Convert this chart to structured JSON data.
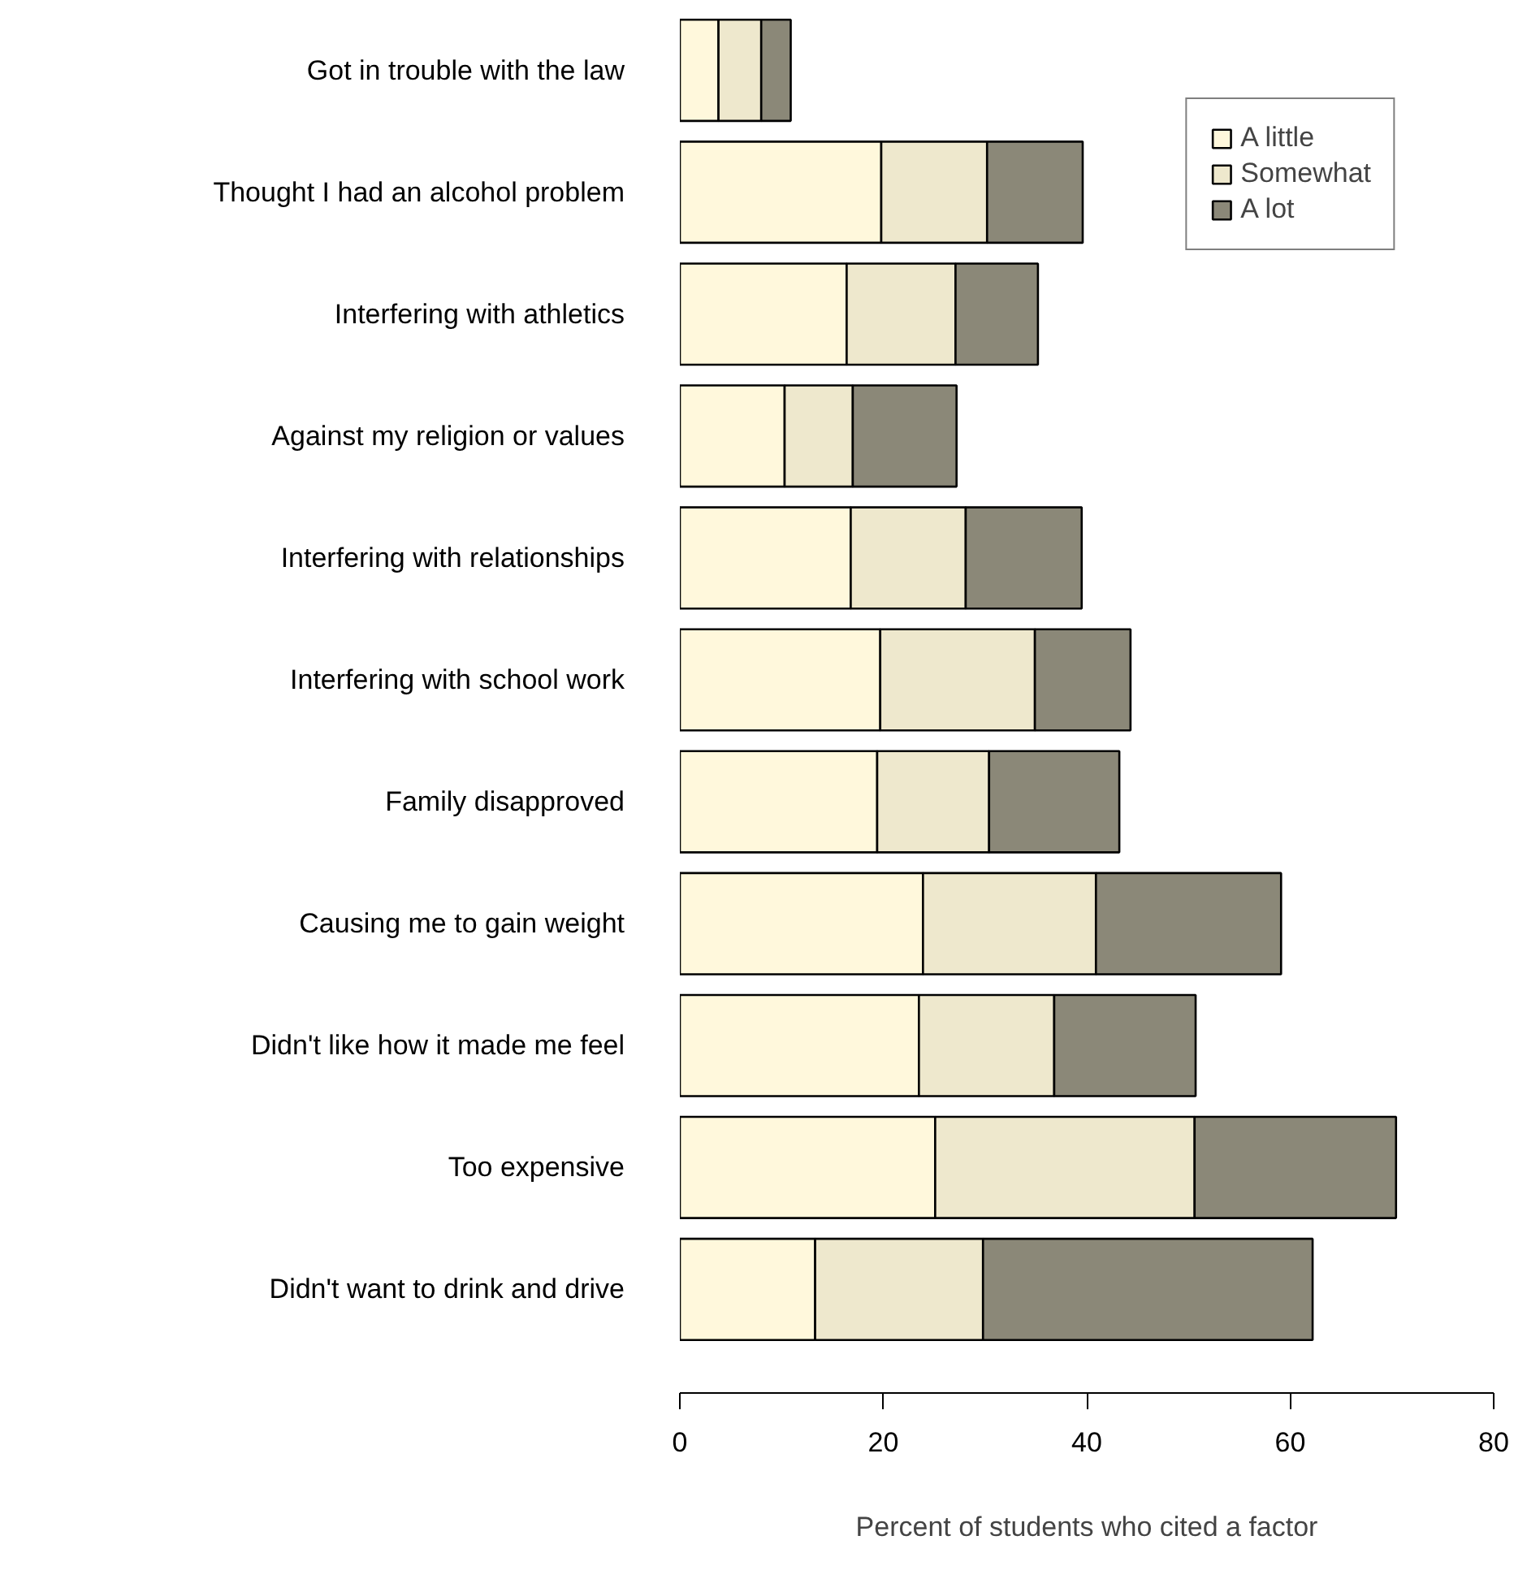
{
  "chart_data": {
    "type": "bar",
    "orientation": "horizontal",
    "stacked": true,
    "xlabel": "Percent of students who cited a factor",
    "categories": [
      "Got in trouble with the law",
      "Thought I had an alcohol problem",
      "Interfering with athletics",
      "Against my religion or values",
      "Interfering with relationships",
      "Interfering with school work",
      "Family disapproved",
      "Causing me to gain weight",
      "Didn't like how it made me feel",
      "Too expensive",
      "Didn't want to drink and drive"
    ],
    "series": [
      {
        "name": "A little",
        "color": "#fff8dc",
        "values": [
          3.8,
          19.8,
          16.4,
          10.3,
          16.8,
          19.7,
          19.4,
          23.9,
          23.5,
          25.1,
          13.3
        ]
      },
      {
        "name": "Somewhat",
        "color": "#eee8cd",
        "values": [
          4.2,
          10.4,
          10.7,
          6.7,
          11.3,
          15.2,
          11.0,
          17.0,
          13.3,
          25.5,
          16.5
        ]
      },
      {
        "name": "A lot",
        "color": "#8b8878",
        "values": [
          2.9,
          9.4,
          8.1,
          10.2,
          11.4,
          9.4,
          12.8,
          18.2,
          13.9,
          19.8,
          32.4
        ]
      }
    ],
    "xlim": [
      0,
      80
    ],
    "xticks": [
      0,
      20,
      40,
      60,
      80
    ],
    "grid": false,
    "legend": "top right"
  }
}
